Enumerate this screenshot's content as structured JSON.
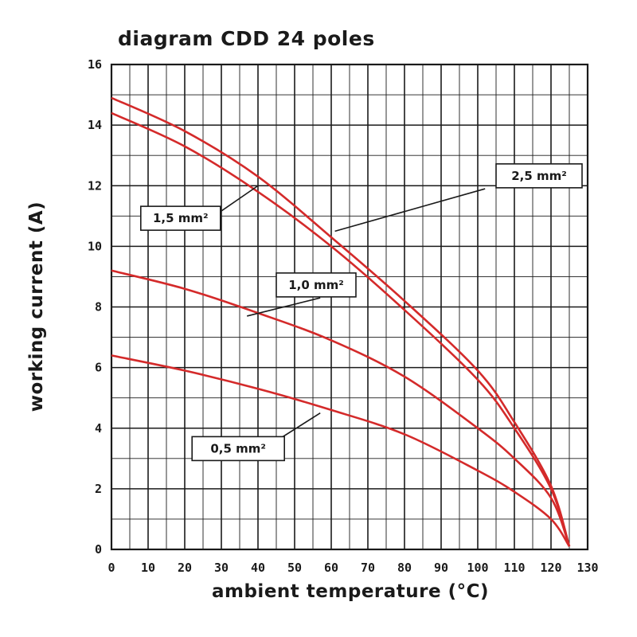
{
  "chart_data": {
    "type": "line",
    "title": "diagram CDD 24 poles",
    "xlabel": "ambient temperature (°C)",
    "ylabel": "working current (A)",
    "xlim": [
      0,
      130
    ],
    "ylim": [
      0,
      16
    ],
    "x_ticks": [
      0,
      10,
      20,
      30,
      40,
      50,
      60,
      70,
      80,
      90,
      100,
      110,
      120,
      130
    ],
    "y_ticks": [
      0,
      2,
      4,
      6,
      8,
      10,
      12,
      14,
      16
    ],
    "grid": true,
    "colors": {
      "series": "#d42a2a",
      "grid": "#1a1a1a",
      "text": "#1a1a1a"
    },
    "series": [
      {
        "name": "2,5 mm²",
        "x": [
          0,
          20,
          40,
          60,
          80,
          100,
          110,
          120,
          125
        ],
        "y": [
          14.9,
          13.8,
          12.3,
          10.3,
          8.2,
          5.9,
          4.2,
          2.1,
          0.1
        ]
      },
      {
        "name": "1,5 mm²",
        "x": [
          0,
          20,
          40,
          60,
          80,
          100,
          110,
          120,
          125
        ],
        "y": [
          14.4,
          13.3,
          11.8,
          10.0,
          7.9,
          5.6,
          4.0,
          2.0,
          0.1
        ]
      },
      {
        "name": "1,0 mm²",
        "x": [
          0,
          20,
          40,
          60,
          80,
          100,
          110,
          120,
          125
        ],
        "y": [
          9.2,
          8.6,
          7.8,
          6.9,
          5.7,
          4.0,
          3.0,
          1.7,
          0.1
        ]
      },
      {
        "name": "0,5 mm²",
        "x": [
          0,
          20,
          40,
          60,
          80,
          100,
          110,
          120,
          125
        ],
        "y": [
          6.4,
          5.9,
          5.3,
          4.6,
          3.8,
          2.6,
          1.9,
          1.0,
          0.1
        ]
      }
    ],
    "series_labels": [
      "2,5 mm²",
      "1,5 mm²",
      "1,0 mm²",
      "0,5 mm²"
    ]
  }
}
